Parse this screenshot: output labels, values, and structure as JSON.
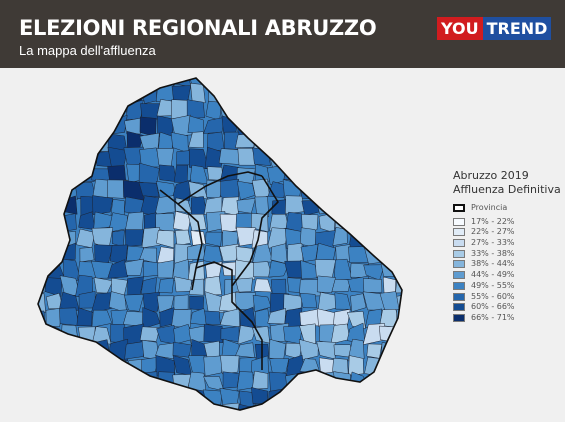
{
  "header": {
    "title": "ELEZIONI REGIONALI ABRUZZO",
    "subtitle": "La mappa dell'affluenza",
    "logo_part1": "YOU",
    "logo_part2": "TREND",
    "background": "#3f3a36"
  },
  "legend": {
    "title_line1": "Abruzzo 2019",
    "title_line2": "Affluenza Definitiva",
    "province_label": "Provincia",
    "classes": [
      {
        "label": "17% - 22%",
        "color": "#f7fbff"
      },
      {
        "label": "22% - 27%",
        "color": "#e1ecf7"
      },
      {
        "label": "27% - 33%",
        "color": "#c9dcf0"
      },
      {
        "label": "33% - 38%",
        "color": "#a8cbe6"
      },
      {
        "label": "38% - 44%",
        "color": "#85b5dc"
      },
      {
        "label": "44% - 49%",
        "color": "#5f9cd0"
      },
      {
        "label": "49% - 55%",
        "color": "#3c82c2"
      },
      {
        "label": "55% - 60%",
        "color": "#2566ac"
      },
      {
        "label": "60% - 66%",
        "color": "#144c92"
      },
      {
        "label": "66% - 71%",
        "color": "#0b2e6c"
      }
    ]
  },
  "colors": {
    "map_base": "#3c82c2",
    "province_border": "#111111",
    "municipality_border": "#1c2230"
  }
}
